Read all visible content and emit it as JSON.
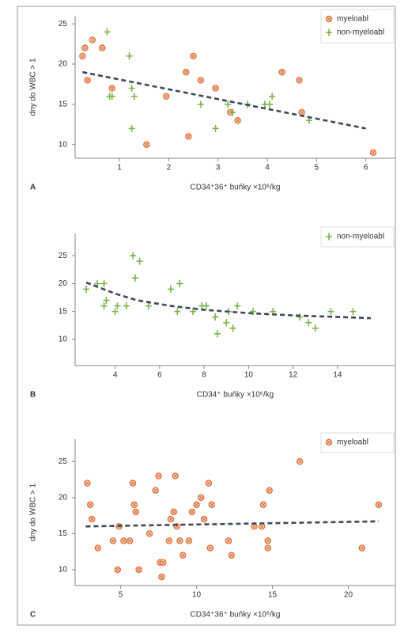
{
  "chart_data": [
    {
      "type": "scatter",
      "panel": "A",
      "ylabel": "dny do WBC > 1",
      "xlabel": "CD34⁺36⁺ buňky ×10⁶/kg",
      "xlim": [
        0.1,
        6.6
      ],
      "ylim": [
        8.3,
        26
      ],
      "xticks": [
        1,
        2,
        3,
        4,
        5,
        6
      ],
      "yticks": [
        10,
        15,
        20,
        25
      ],
      "legend": "upper right",
      "series": [
        {
          "name": "myeloabl",
          "marker": "circle-x",
          "color": "#e0703a",
          "x": [
            0.25,
            0.3,
            0.35,
            0.45,
            0.65,
            0.85,
            1.55,
            1.95,
            2.35,
            2.4,
            2.5,
            2.65,
            2.95,
            3.25,
            3.4,
            4.3,
            4.65,
            4.7,
            6.15
          ],
          "values": [
            21,
            22,
            18,
            23,
            22,
            17,
            10,
            16,
            19,
            11,
            21,
            18,
            17,
            14,
            13,
            19,
            18,
            14,
            9
          ]
        },
        {
          "name": "non-myeloabl",
          "marker": "plus",
          "color": "#7ab648",
          "x": [
            0.75,
            0.8,
            0.85,
            1.2,
            1.25,
            1.3,
            1.25,
            2.65,
            2.95,
            3.2,
            3.3,
            3.6,
            3.95,
            4.05,
            4.1,
            4.85
          ],
          "values": [
            24,
            16,
            16,
            21,
            17,
            16,
            12,
            15,
            12,
            15,
            14,
            15,
            15,
            15,
            16,
            13
          ]
        }
      ],
      "trend": {
        "color": "#3d4b5c",
        "x": [
          0.25,
          6.0
        ],
        "values": [
          19,
          12
        ]
      }
    },
    {
      "type": "scatter",
      "panel": "B",
      "xlabel": "CD34⁺ buňky ×10⁶/kg",
      "xlim": [
        2.2,
        16.6
      ],
      "ylim": [
        5.3,
        29
      ],
      "xticks": [
        4,
        6,
        8,
        10,
        12,
        14
      ],
      "yticks": [
        10,
        15,
        20,
        25
      ],
      "legend": "upper right",
      "series": [
        {
          "name": "non-myeloabl",
          "marker": "plus",
          "color": "#7ab648",
          "x": [
            2.7,
            3.2,
            3.5,
            3.5,
            3.6,
            4.0,
            4.1,
            4.5,
            4.8,
            4.9,
            5.1,
            5.5,
            6.5,
            6.8,
            6.9,
            7.5,
            7.9,
            8.1,
            8.5,
            8.6,
            9.0,
            9.1,
            9.3,
            9.5,
            10.2,
            11.1,
            12.3,
            12.7,
            13.0,
            13.7,
            14.7
          ],
          "values": [
            19,
            20,
            16,
            20,
            17,
            15,
            16,
            16,
            25,
            21,
            24,
            16,
            19,
            15,
            20,
            15,
            16,
            16,
            14,
            11,
            13,
            15,
            12,
            16,
            15,
            15,
            14,
            13,
            12,
            15,
            15
          ]
        }
      ],
      "trend": {
        "color": "#3d4b5c",
        "x": [
          2.7,
          4,
          5,
          6.5,
          8,
          10,
          12,
          15.5
        ],
        "values": [
          20.2,
          18.2,
          17,
          16,
          15.3,
          14.7,
          14.3,
          13.8
        ]
      }
    },
    {
      "type": "scatter",
      "panel": "C",
      "ylabel": "dny do WBC > 1",
      "xlabel": "CD34⁺36⁺ buňky ×10⁶/kg",
      "xlim": [
        2.0,
        23.1
      ],
      "ylim": [
        7.8,
        28.1
      ],
      "xticks": [
        5,
        10,
        15,
        20
      ],
      "yticks": [
        10,
        15,
        20,
        25
      ],
      "legend": "upper right",
      "series": [
        {
          "name": "myeloabl",
          "marker": "circle-x",
          "color": "#e0703a",
          "x": [
            2.8,
            3.0,
            3.1,
            3.5,
            4.5,
            4.8,
            4.9,
            5.2,
            5.6,
            5.8,
            5.9,
            6.0,
            6.2,
            6.9,
            7.3,
            7.5,
            7.6,
            7.7,
            7.8,
            8.2,
            8.3,
            8.5,
            8.6,
            8.7,
            8.9,
            9.1,
            9.5,
            9.7,
            10.0,
            10.3,
            10.5,
            10.8,
            10.9,
            11.0,
            12.1,
            12.3,
            13.8,
            14.3,
            14.4,
            14.7,
            14.7,
            14.8,
            16.8,
            20.9,
            22.0
          ],
          "values": [
            22,
            19,
            17,
            13,
            14,
            10,
            16,
            14,
            14,
            22,
            19,
            18,
            10,
            15,
            21,
            23,
            11,
            9,
            11,
            14,
            17,
            18,
            23,
            16,
            14,
            12,
            14,
            18,
            19,
            20,
            17,
            22,
            13,
            19,
            14,
            12,
            16,
            16,
            19,
            14,
            13,
            21,
            25,
            13,
            19
          ]
        }
      ],
      "trend": {
        "color": "#3d4b5c",
        "x": [
          2.7,
          22.0
        ],
        "values": [
          16,
          16.7
        ]
      }
    }
  ]
}
